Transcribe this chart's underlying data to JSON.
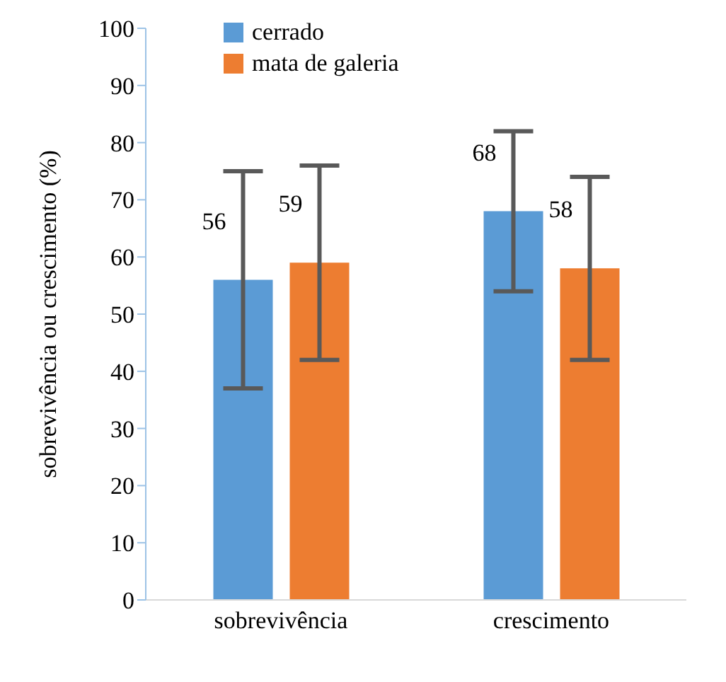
{
  "chart_data": {
    "type": "bar",
    "ylabel": "sobrevivência ou crescimento   (%)",
    "categories": [
      "sobrevivência",
      "crescimento"
    ],
    "series": [
      {
        "name": "cerrado",
        "color": "#5b9bd5",
        "values": [
          56,
          68
        ],
        "errors": [
          19,
          14
        ]
      },
      {
        "name": "mata de galeria",
        "color": "#ed7d31",
        "values": [
          59,
          58
        ],
        "errors": [
          17,
          16
        ]
      }
    ],
    "ylim": [
      0,
      100
    ],
    "yticks": [
      0,
      10,
      20,
      30,
      40,
      50,
      60,
      70,
      80,
      90,
      100
    ],
    "data_labels": true,
    "legend": "top left",
    "grid": false
  }
}
